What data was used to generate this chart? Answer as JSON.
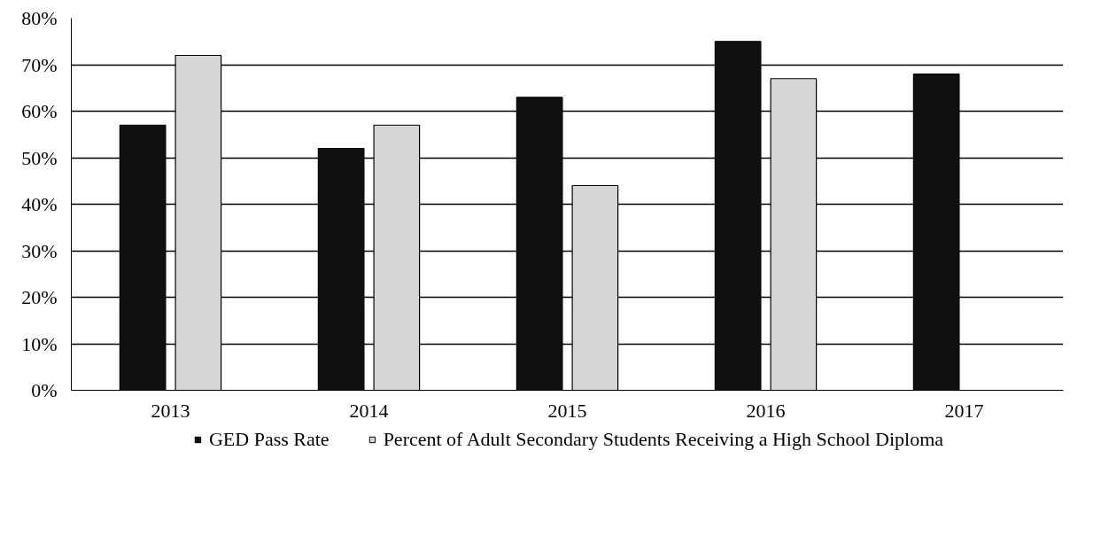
{
  "chart_data": {
    "type": "bar",
    "categories": [
      "2013",
      "2014",
      "2015",
      "2016",
      "2017"
    ],
    "series": [
      {
        "name": "GED Pass Rate",
        "color": "#0f0f0f",
        "values": [
          57,
          52,
          63,
          75,
          68
        ]
      },
      {
        "name": "Percent of Adult Secondary Students Receiving a High School Diploma",
        "color": "#d6d6d6",
        "values": [
          72,
          57,
          44,
          67,
          null
        ]
      }
    ],
    "ylim": [
      0,
      80
    ],
    "yticks": [
      {
        "value": 0,
        "label": "0%"
      },
      {
        "value": 10,
        "label": "10%"
      },
      {
        "value": 20,
        "label": "20%"
      },
      {
        "value": 30,
        "label": "30%"
      },
      {
        "value": 40,
        "label": "40%"
      },
      {
        "value": 50,
        "label": "50%"
      },
      {
        "value": 60,
        "label": "60%"
      },
      {
        "value": 70,
        "label": "70%"
      },
      {
        "value": 80,
        "label": "80%"
      }
    ],
    "grid": "y",
    "legend": "bottom"
  }
}
